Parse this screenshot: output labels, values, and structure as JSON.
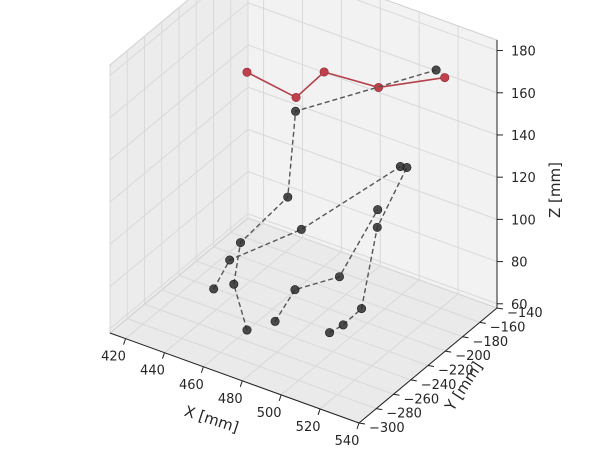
{
  "chart_data": {
    "type": "scatter",
    "projection": "3d",
    "xlabel": "X [mm]",
    "ylabel": "Y [mm]",
    "zlabel": "Z [mm]",
    "xlim": [
      412,
      540
    ],
    "ylim": [
      -300,
      -140
    ],
    "zlim": [
      58,
      185
    ],
    "xticks": [
      420,
      440,
      460,
      480,
      500,
      520,
      540
    ],
    "yticks": [
      -300,
      -280,
      -260,
      -240,
      -220,
      -200,
      -180,
      -160,
      -140
    ],
    "zticks": [
      60,
      80,
      100,
      120,
      140,
      160,
      180
    ],
    "grid": true,
    "pane_color": "#f2f2f2",
    "series": [
      {
        "style": "solid",
        "color": "#b5404a",
        "points": [
          [
            427,
            -175,
            144
          ],
          [
            450,
            -170,
            138
          ],
          [
            460,
            -160,
            150
          ],
          [
            488,
            -160,
            152
          ],
          [
            522,
            -160,
            168
          ]
        ]
      },
      {
        "style": "dashed",
        "color": "#555555",
        "points": [
          [
            478,
            -290,
            78
          ],
          [
            469,
            -285,
            95
          ],
          [
            468,
            -275,
            111
          ],
          [
            479,
            -245,
            126
          ],
          [
            483,
            -245,
            168
          ],
          [
            522,
            -170,
            175
          ]
        ]
      },
      {
        "style": "dashed",
        "color": "#555555",
        "points": [
          [
            452,
            -270,
            82
          ],
          [
            458,
            -265,
            96
          ],
          [
            486,
            -245,
            113
          ],
          [
            528,
            -225,
            150
          ]
        ]
      },
      {
        "style": "dashed",
        "color": "#555555",
        "points": [
          [
            488,
            -280,
            82
          ],
          [
            496,
            -275,
            98
          ],
          [
            510,
            -255,
            102
          ],
          [
            523,
            -240,
            133
          ]
        ]
      },
      {
        "style": "dashed",
        "color": "#555555",
        "points": [
          [
            516,
            -280,
            86
          ],
          [
            523,
            -280,
            92
          ],
          [
            528,
            -270,
            98
          ],
          [
            525,
            -245,
            127
          ],
          [
            538,
            -240,
            158
          ]
        ]
      }
    ]
  }
}
